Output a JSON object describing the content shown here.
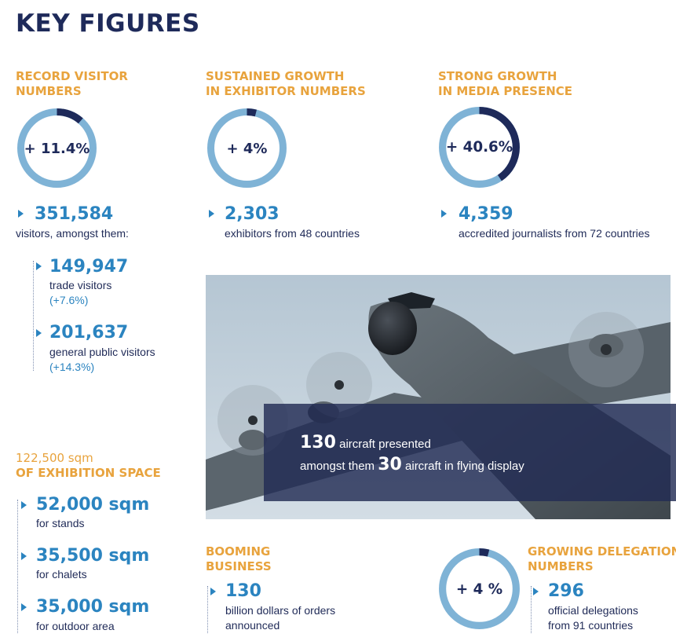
{
  "title": "KEY FIGURES",
  "visitors": {
    "heading": [
      "RECORD VISITOR",
      "NUMBERS"
    ],
    "donut": {
      "label": "+ 11.4%",
      "share": 0.114
    },
    "total": "351,584",
    "total_desc": "visitors, amongst them:",
    "trade": {
      "value": "149,947",
      "desc": "trade visitors",
      "pct": "(+7.6%)"
    },
    "public": {
      "value": "201,637",
      "desc": "general public visitors",
      "pct": "(+14.3%)"
    }
  },
  "exhibitors": {
    "heading": [
      "SUSTAINED GROWTH",
      "IN EXHIBITOR NUMBERS"
    ],
    "donut": {
      "label": "+ 4%",
      "share": 0.04
    },
    "value": "2,303",
    "desc": "exhibitors from 48 countries"
  },
  "media": {
    "heading": [
      "STRONG GROWTH",
      "IN MEDIA PRESENCE"
    ],
    "donut": {
      "label": "+ 40.6%",
      "share": 0.406
    },
    "value": "4,359",
    "desc": "accredited journalists from 72 countries"
  },
  "aircraft": {
    "count": "130",
    "line1_text": "aircraft presented",
    "line2_prefix": "amongst them",
    "flying": "30",
    "line2_text": "aircraft in flying display"
  },
  "space": {
    "heading_top": "122,500 sqm",
    "heading": "OF EXHIBITION SPACE",
    "items": [
      {
        "value": "52,000 sqm",
        "desc": "for stands"
      },
      {
        "value": "35,500 sqm",
        "desc": "for chalets"
      },
      {
        "value": "35,000 sqm",
        "desc": "for outdoor area"
      }
    ]
  },
  "business": {
    "heading": [
      "BOOMING",
      "BUSINESS"
    ],
    "value": "130",
    "desc": [
      "billion dollars of orders",
      "announced"
    ]
  },
  "delegations": {
    "heading": [
      "GROWING DELEGATION",
      "NUMBERS"
    ],
    "donut": {
      "label": "+ 4 %",
      "share": 0.04
    },
    "value": "296",
    "desc": [
      "official delegations",
      "from 91 countries"
    ]
  },
  "colors": {
    "navy": "#1e2a5a",
    "blue": "#2b84c0",
    "ring": "#7fb3d6",
    "orange": "#e8a33d"
  }
}
